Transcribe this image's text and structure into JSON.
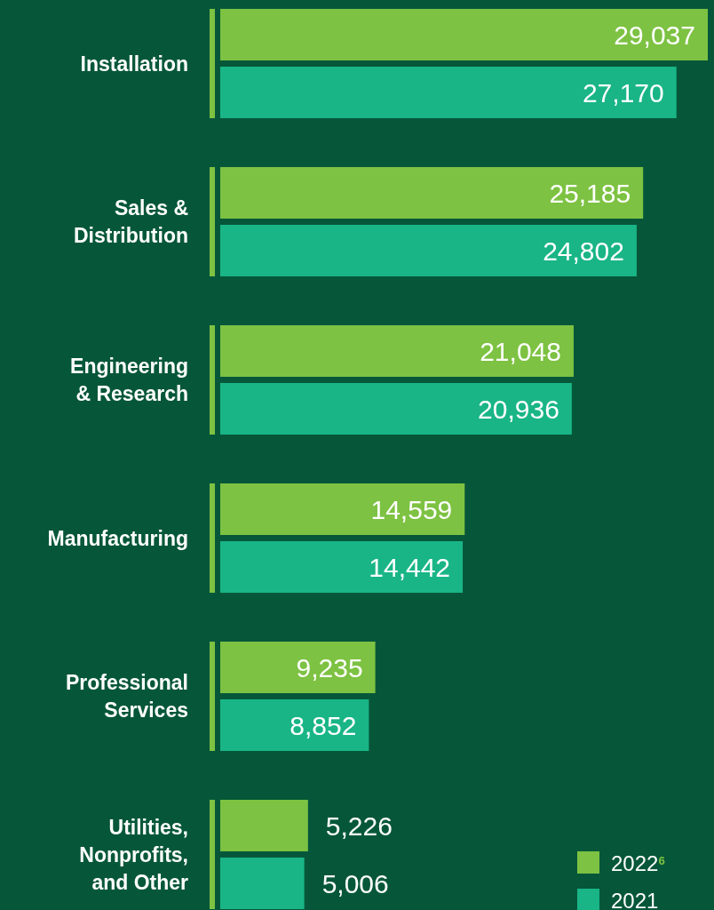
{
  "chart_data": {
    "type": "bar",
    "orientation": "horizontal",
    "categories": [
      "Installation",
      "Sales & Distribution",
      "Engineering & Research",
      "Manufacturing",
      "Professional Services",
      "Utilities, Nonprofits, and Other"
    ],
    "series": [
      {
        "name": "2022$^{6}$",
        "color": "#7dc242",
        "values": [
          29037,
          25185,
          21048,
          14559,
          9235,
          5226
        ],
        "value_labels": [
          "29,037",
          "25,185",
          "21,048",
          "14,559",
          "9,235",
          "5,226"
        ]
      },
      {
        "name": "2021",
        "color": "#19b586",
        "values": [
          27170,
          24802,
          20936,
          14442,
          8852,
          5006
        ],
        "value_labels": [
          "27,170",
          "24,802",
          "20,936",
          "14,442",
          "8,852",
          "5,006"
        ]
      }
    ],
    "legend": "bottom right"
  }
}
